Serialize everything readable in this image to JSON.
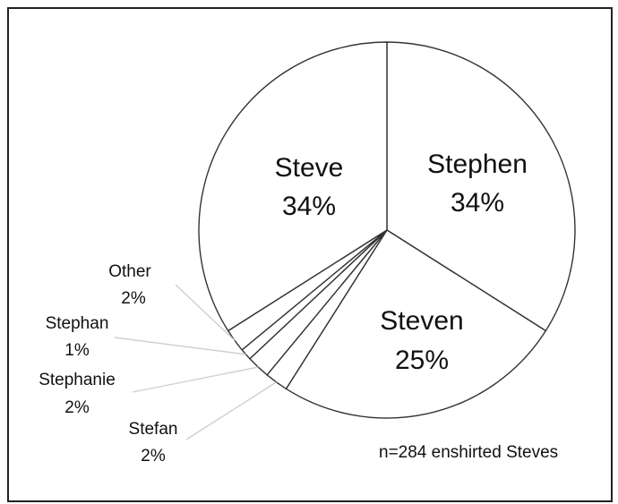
{
  "chart_data": {
    "type": "pie",
    "categories": [
      "Stephen",
      "Steven",
      "Stefan",
      "Stephanie",
      "Stephan",
      "Other",
      "Steve"
    ],
    "labels": [
      {
        "name": "Stephen",
        "pct": "34%"
      },
      {
        "name": "Steven",
        "pct": "25%"
      },
      {
        "name": "Stefan",
        "pct": "2%"
      },
      {
        "name": "Stephanie",
        "pct": "2%"
      },
      {
        "name": "Stephan",
        "pct": "1%"
      },
      {
        "name": "Other",
        "pct": "2%"
      },
      {
        "name": "Steve",
        "pct": "34%"
      }
    ],
    "values": [
      34,
      25,
      2,
      2,
      1,
      2,
      34
    ],
    "annotation": "n=284 enshirted Steves",
    "colors": {
      "fill": "#ffffff",
      "stroke": "#333333",
      "leader": "#cfcfcf"
    }
  }
}
